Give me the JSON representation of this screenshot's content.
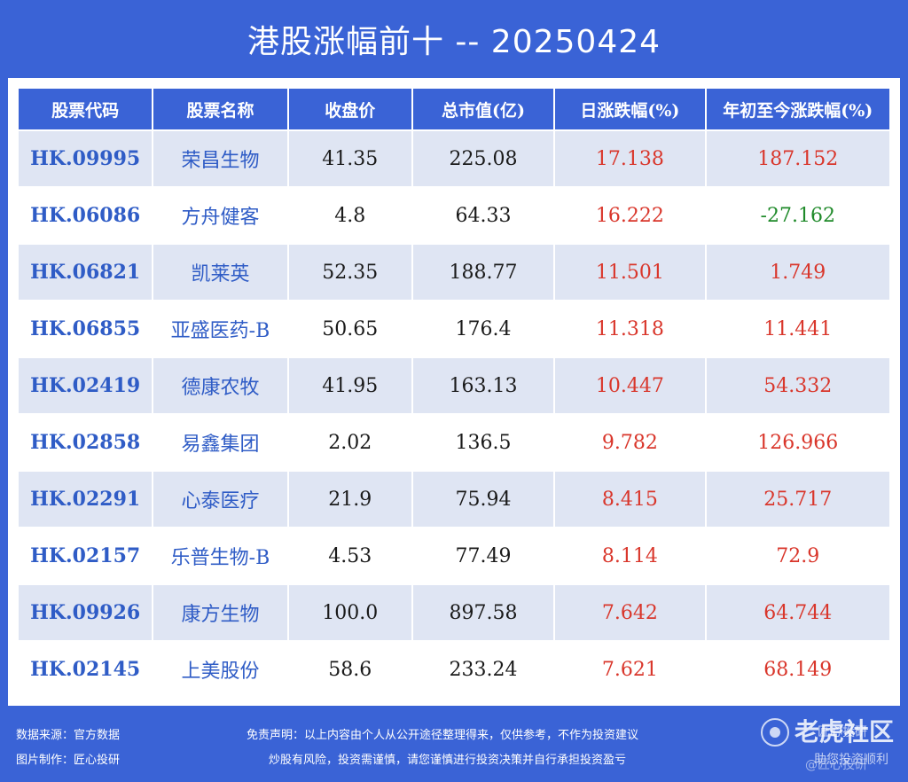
{
  "title": "港股涨幅前十 -- 20250424",
  "table": {
    "headers": [
      "股票代码",
      "股票名称",
      "收盘价",
      "总市值(亿)",
      "日涨跌幅(%)",
      "年初至今涨跌幅(%)"
    ],
    "rows": [
      {
        "code": "HK.09995",
        "name": "荣昌生物",
        "close": "41.35",
        "mcap": "225.08",
        "day": "17.138",
        "ytd": "187.152",
        "ytd_dir": "up"
      },
      {
        "code": "HK.06086",
        "name": "方舟健客",
        "close": "4.8",
        "mcap": "64.33",
        "day": "16.222",
        "ytd": "-27.162",
        "ytd_dir": "down"
      },
      {
        "code": "HK.06821",
        "name": "凯莱英",
        "close": "52.35",
        "mcap": "188.77",
        "day": "11.501",
        "ytd": "1.749",
        "ytd_dir": "up"
      },
      {
        "code": "HK.06855",
        "name": "亚盛医药-B",
        "close": "50.65",
        "mcap": "176.4",
        "day": "11.318",
        "ytd": "11.441",
        "ytd_dir": "up"
      },
      {
        "code": "HK.02419",
        "name": "德康农牧",
        "close": "41.95",
        "mcap": "163.13",
        "day": "10.447",
        "ytd": "54.332",
        "ytd_dir": "up"
      },
      {
        "code": "HK.02858",
        "name": "易鑫集团",
        "close": "2.02",
        "mcap": "136.5",
        "day": "9.782",
        "ytd": "126.966",
        "ytd_dir": "up"
      },
      {
        "code": "HK.02291",
        "name": "心泰医疗",
        "close": "21.9",
        "mcap": "75.94",
        "day": "8.415",
        "ytd": "25.717",
        "ytd_dir": "up"
      },
      {
        "code": "HK.02157",
        "name": "乐普生物-B",
        "close": "4.53",
        "mcap": "77.49",
        "day": "8.114",
        "ytd": "72.9",
        "ytd_dir": "up"
      },
      {
        "code": "HK.09926",
        "name": "康方生物",
        "close": "100.0",
        "mcap": "897.58",
        "day": "7.642",
        "ytd": "64.744",
        "ytd_dir": "up"
      },
      {
        "code": "HK.02145",
        "name": "上美股份",
        "close": "58.6",
        "mcap": "233.24",
        "day": "7.621",
        "ytd": "68.149",
        "ytd_dir": "up"
      }
    ]
  },
  "footer": {
    "source": "数据来源：官方数据",
    "maker": "图片制作：匠心投研",
    "disclaimer1": "免责声明：以上内容由个人从公开途径整理得来，仅供参考，不作为投资建议",
    "disclaimer2": "炒股有风险，投资需谨慎，请您谨慎进行投资决策并自行承担投资盈亏"
  },
  "watermark": {
    "logo_text": "老虎社区",
    "line1": "匠心投研",
    "line2": "助您投资顺利",
    "line3": "@匠心投研"
  },
  "colors": {
    "background": "#3a63d6",
    "up": "#d9362b",
    "down": "#1f8a2a",
    "code": "#2f5cc6",
    "alt_row": "#dfe5f3"
  }
}
